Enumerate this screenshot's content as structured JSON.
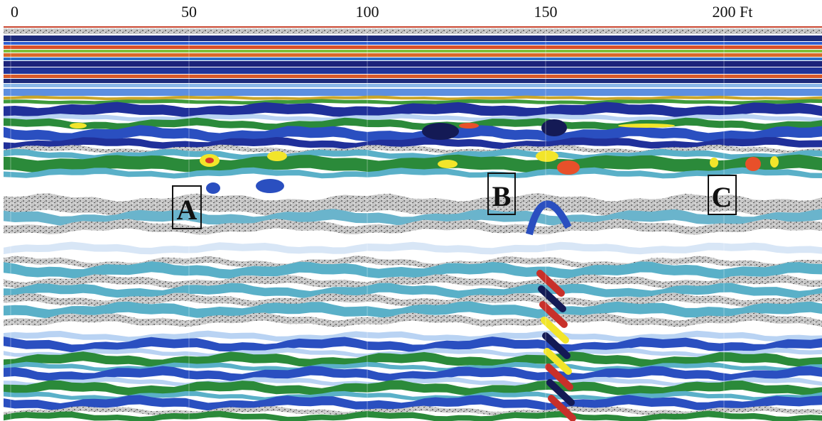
{
  "axis": {
    "ticks": [
      0,
      50,
      100,
      150,
      200
    ],
    "unit": "Ft"
  },
  "markers": [
    {
      "label": "A"
    },
    {
      "label": "B"
    },
    {
      "label": "C"
    }
  ]
}
